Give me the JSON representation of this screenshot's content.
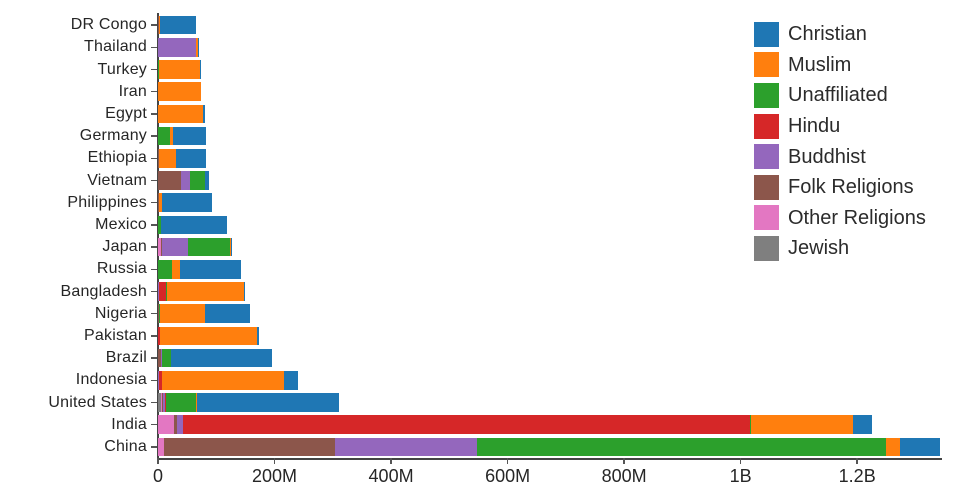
{
  "chart_data": {
    "type": "bar",
    "orientation": "horizontal",
    "stacked": true,
    "title": "",
    "xlabel": "",
    "ylabel": "",
    "unit": "millions of people",
    "grid": false,
    "legend_position": "upper-right",
    "stack_order": "reverse of legend order (Jewish leftmost, Christian rightmost)",
    "xlim": [
      0,
      1342.1
    ],
    "x_ticks": [
      {
        "value": 0,
        "label": "0"
      },
      {
        "value": 200,
        "label": "200M"
      },
      {
        "value": 400,
        "label": "400M"
      },
      {
        "value": 600,
        "label": "600M"
      },
      {
        "value": 800,
        "label": "800M"
      },
      {
        "value": 1000,
        "label": "1B"
      },
      {
        "value": 1200,
        "label": "1.2B"
      }
    ],
    "categories": [
      "DR Congo",
      "Thailand",
      "Turkey",
      "Iran",
      "Egypt",
      "Germany",
      "Ethiopia",
      "Vietnam",
      "Philippines",
      "Mexico",
      "Japan",
      "Russia",
      "Bangladesh",
      "Nigeria",
      "Pakistan",
      "Brazil",
      "Indonesia",
      "United States",
      "India",
      "China"
    ],
    "series": [
      {
        "name": "Christian",
        "color": "#1f77b4",
        "values": [
          63.2,
          0.6,
          0.3,
          0.1,
          4.1,
          56.5,
          52.1,
          7.2,
          86.4,
          112.1,
          2.0,
          104.8,
          0.3,
          78.1,
          2.8,
          173.3,
          23.7,
          243.1,
          31.1,
          68.4
        ]
      },
      {
        "name": "Muslim",
        "color": "#ff7f0e",
        "values": [
          1.0,
          3.8,
          71.3,
          73.6,
          77.0,
          4.8,
          28.7,
          0.2,
          5.1,
          0.0,
          0.2,
          14.3,
          133.5,
          77.3,
          167.4,
          0.0,
          209.1,
          2.8,
          176.2,
          24.7
        ]
      },
      {
        "name": "Unaffiliated",
        "color": "#2ca02c",
        "values": [
          0.3,
          0.2,
          0.9,
          0.1,
          0.0,
          20.3,
          0.1,
          26.0,
          0.1,
          5.4,
          72.1,
          23.2,
          0.1,
          0.8,
          0.0,
          15.4,
          0.2,
          51.0,
          0.9,
          700.7
        ]
      },
      {
        "name": "Hindu",
        "color": "#d62728",
        "values": [
          0,
          0,
          0,
          0,
          0,
          0.1,
          0,
          0,
          0,
          0,
          0,
          0,
          13.5,
          0,
          3.3,
          0,
          4.1,
          1.8,
          973.8,
          0
        ]
      },
      {
        "name": "Buddhist",
        "color": "#9467bd",
        "values": [
          0,
          64.4,
          0,
          0,
          0,
          0.3,
          0,
          14.4,
          0.1,
          0,
          45.8,
          0.1,
          0.7,
          0,
          0,
          0.3,
          1.7,
          3.6,
          9.3,
          244.1
        ]
      },
      {
        "name": "Folk Religions",
        "color": "#8c564b",
        "values": [
          1.2,
          0.1,
          0.1,
          0.1,
          0,
          0.1,
          2.1,
          39.8,
          1.4,
          0.1,
          0.5,
          0.3,
          0.4,
          2.2,
          0,
          5.5,
          0.7,
          0.6,
          5.8,
          294.3
        ]
      },
      {
        "name": "Other Religions",
        "color": "#e377c2",
        "values": [
          0.3,
          0,
          0.1,
          0.1,
          0,
          0.1,
          0,
          0.4,
          0.1,
          0.1,
          5.9,
          0,
          0,
          0.2,
          0,
          0.3,
          0.1,
          1.9,
          27.6,
          9.9
        ]
      },
      {
        "name": "Jewish",
        "color": "#7f7f7f",
        "values": [
          0,
          0,
          0,
          0,
          0,
          0.2,
          0,
          0,
          0,
          0.1,
          0,
          0.3,
          0,
          0,
          0,
          0.1,
          0,
          5.7,
          0,
          0
        ]
      }
    ]
  }
}
